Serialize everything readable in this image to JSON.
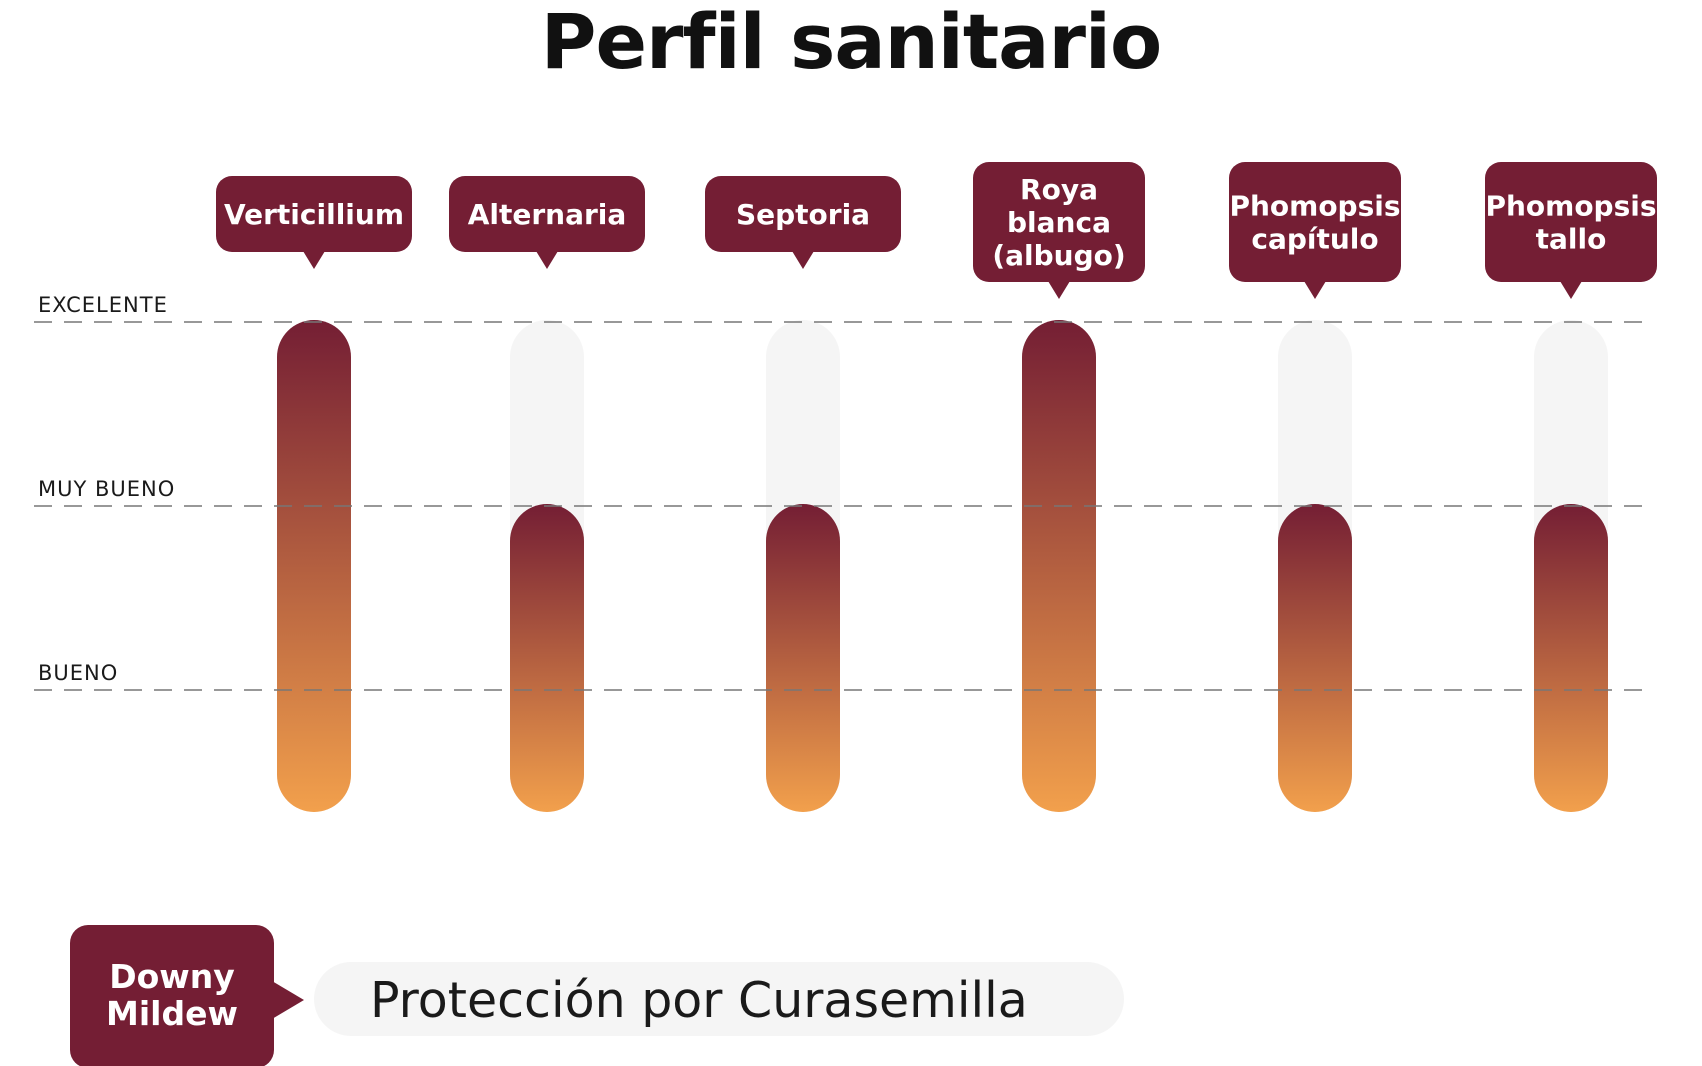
{
  "title": "Perfil sanitario",
  "colors": {
    "maroon": "#741e34",
    "orange": "#f2a04c",
    "track": "#f5f5f5",
    "gridline": "#777777"
  },
  "chart_data": {
    "type": "bar",
    "title": "Perfil sanitario",
    "categories": [
      "Verticillium",
      "Alternaria",
      "Septoria",
      "Roya blanca (albugo)",
      "Phomopsis capítulo",
      "Phomopsis tallo"
    ],
    "category_lines": [
      [
        "Verticillium"
      ],
      [
        "Alternaria"
      ],
      [
        "Septoria"
      ],
      [
        "Roya",
        "blanca",
        "(albugo)"
      ],
      [
        "Phomopsis",
        "capítulo"
      ],
      [
        "Phomopsis",
        "tallo"
      ]
    ],
    "values": [
      "EXCELENTE",
      "MUY BUENO",
      "MUY BUENO",
      "EXCELENTE",
      "MUY BUENO",
      "MUY BUENO"
    ],
    "scale": [
      "BUENO",
      "MUY BUENO",
      "EXCELENTE"
    ],
    "ylabel": "",
    "xlabel": "",
    "grid": true,
    "legend": "none"
  },
  "note": {
    "label_lines": [
      "Downy",
      "Mildew"
    ],
    "text": "Protección por Curasemilla"
  }
}
